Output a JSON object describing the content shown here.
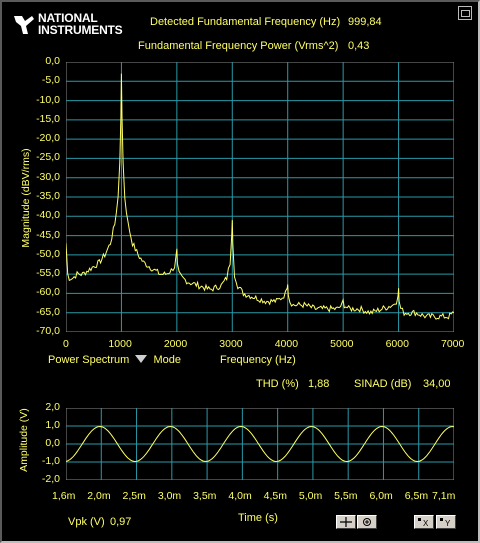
{
  "header": {
    "logo_line1": "NATIONAL",
    "logo_line2": "INSTRUMENTS",
    "fund_freq_label": "Detected Fundamental Frequency (Hz)",
    "fund_freq_value": "999,84",
    "fund_power_label": "Fundamental Frequency Power (Vrms^2)",
    "fund_power_value": "0,43",
    "restore_icon": "restore-window-icon"
  },
  "spectrum": {
    "ylabel": "Magnitude (dBV/rms)",
    "xlabel": "Frequency (Hz)",
    "plot_name": "Power Spectrum",
    "mode_label": "Mode",
    "yticks": [
      "0,0",
      "-5,0",
      "-10,0",
      "-15,0",
      "-20,0",
      "-25,0",
      "-30,0",
      "-35,0",
      "-40,0",
      "-45,0",
      "-50,0",
      "-55,0",
      "-60,0",
      "-65,0",
      "-70,0"
    ],
    "xticks": [
      "0",
      "1000",
      "2000",
      "3000",
      "4000",
      "5000",
      "6000",
      "7000"
    ]
  },
  "metrics": {
    "thd_label": "THD (%)",
    "thd_value": "1,88",
    "sinad_label": "SINAD (dB)",
    "sinad_value": "34,00"
  },
  "waveform": {
    "ylabel": "Amplitude (V)",
    "xlabel": "Time (s)",
    "yticks": [
      "2,0",
      "1,0",
      "0,0",
      "-1,0",
      "-2,0"
    ],
    "xticks": [
      "1,6m",
      "2,0m",
      "2,5m",
      "3,0m",
      "3,5m",
      "4,0m",
      "4,5m",
      "5,0m",
      "5,5m",
      "6,0m",
      "6,5m",
      "7,1m"
    ],
    "vpk_label": "Vpk (V)",
    "vpk_value": "0,97"
  },
  "colors": {
    "plot_bg": "#000000",
    "grid": "#2a9aa8",
    "trace": "#ffff66",
    "text": "#ffff66"
  },
  "chart_data": [
    {
      "type": "line",
      "title": "",
      "xlabel": "Frequency (Hz)",
      "ylabel": "Magnitude (dBV/rms)",
      "xlim": [
        0,
        7000
      ],
      "ylim": [
        -70,
        0
      ],
      "grid": true,
      "series": [
        {
          "name": "Power Spectrum",
          "x": [
            0,
            30,
            60,
            120,
            200,
            300,
            400,
            500,
            600,
            700,
            800,
            880,
            940,
            970,
            990,
            1000,
            1010,
            1030,
            1060,
            1120,
            1200,
            1300,
            1400,
            1500,
            1600,
            1700,
            1800,
            1900,
            1960,
            1990,
            2000,
            2010,
            2040,
            2100,
            2200,
            2400,
            2600,
            2800,
            2900,
            2960,
            2990,
            3000,
            3010,
            3040,
            3100,
            3200,
            3400,
            3600,
            3800,
            3900,
            3960,
            3990,
            4000,
            4010,
            4040,
            4100,
            4300,
            4500,
            4700,
            4900,
            4980,
            5000,
            5020,
            5100,
            5300,
            5500,
            5700,
            5900,
            5960,
            5990,
            6000,
            6010,
            6040,
            6100,
            6300,
            6500,
            6700,
            6900,
            7000
          ],
          "y": [
            -47,
            -55,
            -56,
            -56,
            -55,
            -55,
            -54,
            -53,
            -52,
            -50,
            -47,
            -42,
            -35,
            -26,
            -14,
            -3,
            -14,
            -26,
            -35,
            -42,
            -47,
            -50,
            -52,
            -53,
            -54,
            -55,
            -55,
            -54,
            -53,
            -50,
            -49,
            -53,
            -55,
            -56,
            -57,
            -58,
            -59,
            -58,
            -56,
            -52,
            -45,
            -41,
            -47,
            -55,
            -58,
            -60,
            -61,
            -62,
            -62,
            -61,
            -60,
            -58,
            -57,
            -60,
            -62,
            -63,
            -63,
            -64,
            -64,
            -64,
            -63,
            -62,
            -63,
            -64,
            -64,
            -65,
            -64,
            -63,
            -62,
            -60,
            -59,
            -62,
            -64,
            -65,
            -65,
            -66,
            -66,
            -66,
            -65
          ]
        }
      ]
    },
    {
      "type": "line",
      "title": "",
      "xlabel": "Time (s)",
      "ylabel": "Amplitude (V)",
      "xlim": [
        0.0016,
        0.0071
      ],
      "ylim": [
        -2,
        2
      ],
      "grid": true,
      "series": [
        {
          "name": "",
          "amplitude": 0.97,
          "frequency_hz": 1000,
          "phase_at_xmin_cycles": -0.23
        }
      ]
    }
  ]
}
